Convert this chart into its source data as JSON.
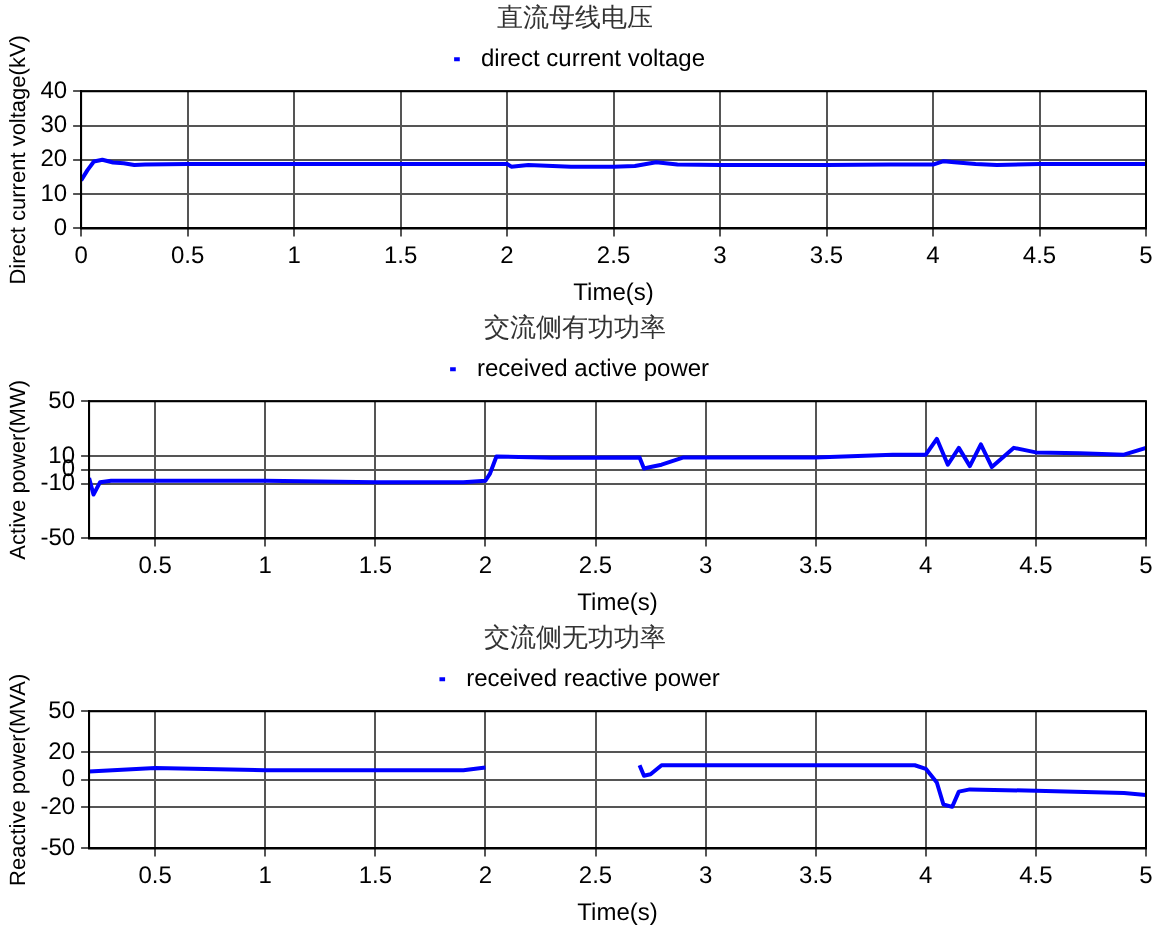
{
  "chart_data": [
    {
      "type": "line",
      "title": "直流母线电压",
      "xlabel": "Time(s)",
      "ylabel": "Direct current voltage(kV)",
      "xlim": [
        0,
        5
      ],
      "xticks": [
        0,
        0.5,
        1,
        1.5,
        2,
        2.5,
        3,
        3.5,
        4,
        4.5,
        5
      ],
      "ylim": [
        0,
        40
      ],
      "yticks": [
        0,
        10,
        20,
        30,
        40
      ],
      "grid": true,
      "legend": "top",
      "line_style": "solid",
      "marker": "none",
      "series": [
        {
          "name": "direct current voltage",
          "color": "#0000ff",
          "x": [
            0,
            0.03,
            0.06,
            0.1,
            0.15,
            0.2,
            0.25,
            0.3,
            0.5,
            1,
            1.5,
            2,
            2.02,
            2.1,
            2.3,
            2.5,
            2.6,
            2.7,
            2.8,
            3,
            3.5,
            3.8,
            4,
            4.05,
            4.1,
            4.2,
            4.3,
            4.5,
            5
          ],
          "values": [
            14,
            17,
            19.5,
            20,
            19.2,
            19,
            18.5,
            18.6,
            18.8,
            18.8,
            18.8,
            18.8,
            18,
            18.5,
            18,
            18,
            18.2,
            19.3,
            18.6,
            18.5,
            18.5,
            18.6,
            18.6,
            19.6,
            19.3,
            18.8,
            18.5,
            18.8,
            18.8
          ]
        }
      ]
    },
    {
      "type": "line",
      "title": "交流侧有功功率",
      "xlabel": "Time(s)",
      "ylabel": "Active power(MW)",
      "xlim": [
        0.2,
        5
      ],
      "xticks": [
        0.5,
        1,
        1.5,
        2,
        2.5,
        3,
        3.5,
        4,
        4.5,
        5
      ],
      "ylim": [
        -50,
        50
      ],
      "yticks": [
        -50,
        -10,
        0,
        10,
        50
      ],
      "grid": true,
      "legend": "top",
      "line_style": "solid",
      "marker": "none",
      "series": [
        {
          "name": "received active power",
          "color": "#0000ff",
          "x": [
            0.2,
            0.22,
            0.25,
            0.3,
            0.5,
            1,
            1.5,
            1.9,
            2,
            2.02,
            2.05,
            2.3,
            2.7,
            2.72,
            2.75,
            2.8,
            2.9,
            3.5,
            3.85,
            4,
            4.05,
            4.1,
            4.15,
            4.2,
            4.25,
            4.3,
            4.4,
            4.5,
            4.7,
            4.9,
            5
          ],
          "values": [
            -6,
            -18,
            -9,
            -8,
            -8,
            -8,
            -9,
            -9,
            -8,
            -3,
            9.7,
            8.7,
            9,
            1,
            2,
            3.7,
            9,
            9,
            11,
            11,
            22.6,
            3.7,
            16,
            2.7,
            18.6,
            2,
            16,
            12.7,
            12,
            11,
            16
          ]
        }
      ]
    },
    {
      "type": "line",
      "title": "交流侧无功功率",
      "xlabel": "Time(s)",
      "ylabel": "Reactive power(MVA)",
      "xlim": [
        0.2,
        5
      ],
      "xticks": [
        0.5,
        1,
        1.5,
        2,
        2.5,
        3,
        3.5,
        4,
        4.5,
        5
      ],
      "ylim": [
        -50,
        50
      ],
      "yticks": [
        -50,
        -20,
        0,
        20,
        50
      ],
      "grid": true,
      "legend": "top",
      "line_style": "solid",
      "marker": "none",
      "series": [
        {
          "name": "received reactive power",
          "color": "#0000ff",
          "x": [
            0.2,
            0.5,
            1,
            1.5,
            1.9,
            2,
            2.05,
            2.7,
            2.72,
            2.75,
            2.8,
            3.5,
            3.95,
            4,
            4.05,
            4.08,
            4.12,
            4.15,
            4.2,
            4.5,
            4.9,
            5
          ],
          "values": [
            6,
            8.6,
            7,
            7,
            7,
            9,
            null,
            10.6,
            3,
            4,
            10.6,
            10.6,
            10.6,
            8,
            -2,
            -18,
            -19.7,
            -8.6,
            -7,
            -8,
            -9.6,
            -11
          ]
        }
      ]
    }
  ]
}
